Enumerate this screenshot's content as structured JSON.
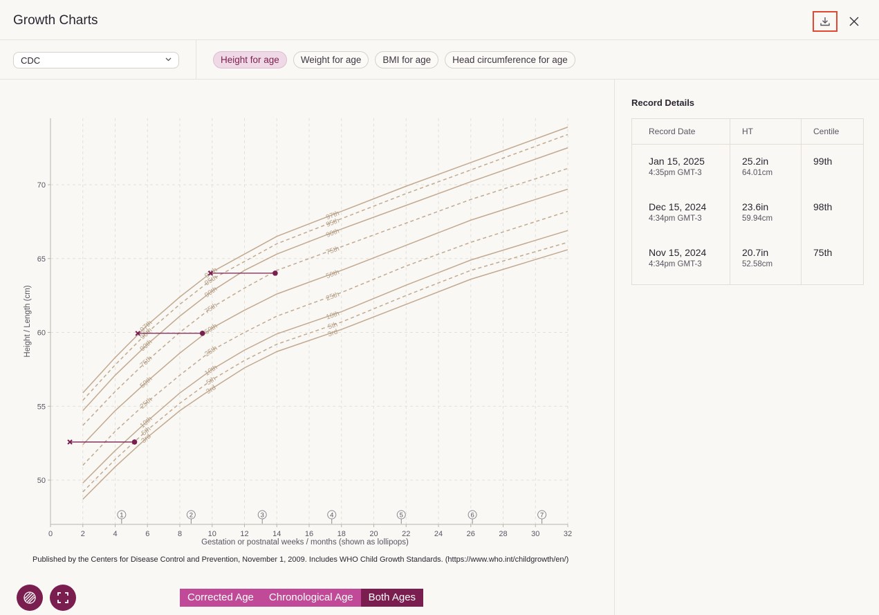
{
  "header": {
    "title": "Growth Charts"
  },
  "toolbar": {
    "source_select": "CDC",
    "tabs": [
      "Height for age",
      "Weight for age",
      "BMI for age",
      "Head circumference for age"
    ],
    "active_tab": 0
  },
  "chart_data": {
    "type": "line",
    "xlabel": "Gestation or postnatal weeks / months (shown as lollipops)",
    "ylabel": "Height / Length (cm)",
    "xlim": [
      0,
      32
    ],
    "ylim": [
      47,
      74.5
    ],
    "x_ticks": [
      0,
      2,
      4,
      6,
      8,
      10,
      12,
      14,
      16,
      18,
      20,
      22,
      24,
      26,
      28,
      30,
      32
    ],
    "y_ticks": [
      50,
      55,
      60,
      65,
      70
    ],
    "grid": true,
    "x": [
      2,
      4,
      6,
      8,
      10,
      12,
      14,
      18,
      22,
      26,
      32
    ],
    "series": [
      {
        "name": "97th",
        "dashed": false,
        "values": [
          55.9,
          58.3,
          60.5,
          62.4,
          64.1,
          65.3,
          66.5,
          68.2,
          69.9,
          71.5,
          73.9
        ]
      },
      {
        "name": "95th",
        "dashed": true,
        "values": [
          55.4,
          57.8,
          60.0,
          61.9,
          63.6,
          64.8,
          66.0,
          67.7,
          69.4,
          71.0,
          73.4
        ]
      },
      {
        "name": "90th",
        "dashed": false,
        "values": [
          54.7,
          57.1,
          59.2,
          61.1,
          62.8,
          64.2,
          65.3,
          67.0,
          68.6,
          70.2,
          72.5
        ]
      },
      {
        "name": "75th",
        "dashed": true,
        "values": [
          53.7,
          56.0,
          58.1,
          60.0,
          61.7,
          63.0,
          64.2,
          65.8,
          67.4,
          69.0,
          71.1
        ]
      },
      {
        "name": "50th",
        "dashed": false,
        "values": [
          52.4,
          54.7,
          56.7,
          58.6,
          60.3,
          61.5,
          62.6,
          64.2,
          65.9,
          67.6,
          69.7
        ]
      },
      {
        "name": "25th",
        "dashed": true,
        "values": [
          51.0,
          53.3,
          55.3,
          57.1,
          58.8,
          60.0,
          61.1,
          62.7,
          64.5,
          66.1,
          68.2
        ]
      },
      {
        "name": "10th",
        "dashed": false,
        "values": [
          49.8,
          52.0,
          54.0,
          55.9,
          57.5,
          58.8,
          59.9,
          61.4,
          63.2,
          64.9,
          66.9
        ]
      },
      {
        "name": "5th",
        "dashed": true,
        "values": [
          49.2,
          51.4,
          53.4,
          55.2,
          56.8,
          58.1,
          59.2,
          60.7,
          62.5,
          64.2,
          66.1
        ]
      },
      {
        "name": "3rd",
        "dashed": false,
        "values": [
          48.7,
          50.9,
          52.9,
          54.7,
          56.2,
          57.6,
          58.7,
          60.2,
          61.9,
          63.6,
          65.6
        ]
      }
    ],
    "measurements": [
      {
        "corrected_x": 1.2,
        "chronological_x": 5.2,
        "y": 52.58
      },
      {
        "corrected_x": 5.4,
        "chronological_x": 9.4,
        "y": 59.94
      },
      {
        "corrected_x": 9.9,
        "chronological_x": 13.9,
        "y": 64.01
      }
    ],
    "month_lollipops": [
      {
        "label": "1",
        "x": 4.4
      },
      {
        "label": "2",
        "x": 8.7
      },
      {
        "label": "3",
        "x": 13.1
      },
      {
        "label": "4",
        "x": 17.4
      },
      {
        "label": "5",
        "x": 21.7
      },
      {
        "label": "6",
        "x": 26.1
      },
      {
        "label": "7",
        "x": 30.4
      }
    ],
    "source": "Published by the Centers for Disease Control and Prevention, November 1, 2009. Includes WHO Child Growth Standards. (https://www.who.int/childgrowth/en/)"
  },
  "age_toggle": {
    "options": [
      "Corrected Age",
      "Chronological Age",
      "Both Ages"
    ],
    "active": 2
  },
  "details": {
    "title": "Record Details",
    "columns": [
      "Record Date",
      "HT",
      "Centile"
    ],
    "rows": [
      {
        "date": "Jan 15, 2025",
        "time": "4:35pm GMT-3",
        "ht_in": "25.2in",
        "ht_cm": "64.01cm",
        "centile": "99th"
      },
      {
        "date": "Dec 15, 2024",
        "time": "4:34pm GMT-3",
        "ht_in": "23.6in",
        "ht_cm": "59.94cm",
        "centile": "98th"
      },
      {
        "date": "Nov 15, 2024",
        "time": "4:34pm GMT-3",
        "ht_in": "20.7in",
        "ht_cm": "52.58cm",
        "centile": "75th"
      }
    ]
  },
  "colors": {
    "accent": "#7a1d4f",
    "accent_light": "#c04a97",
    "centile_line": "#c2a98f",
    "highlight": "#e2472f"
  }
}
